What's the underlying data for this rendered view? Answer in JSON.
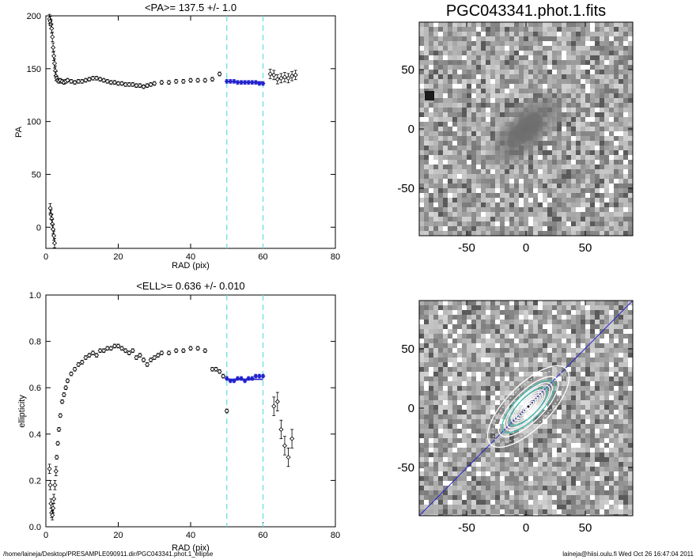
{
  "footer": {
    "path": "/home/laineja/Desktop/PRESAMPLE090911.dir/PGC043341.phot.1_ellipse",
    "stamp": "laineja@hiisi.oulu.fi  Wed Oct 26 16:47:04 2011"
  },
  "colors": {
    "fit": "#2222cc",
    "window": "#66dddd",
    "cyan_contour": "#40c0b0"
  },
  "chart_data": [
    {
      "id": "pa",
      "type": "scatter",
      "title": "<PA>= 137.5 +/-   1.0",
      "xlabel": "RAD (pix)",
      "ylabel": "PA",
      "xlim": [
        0,
        80
      ],
      "ylim": [
        -20,
        200
      ],
      "xticks": [
        0,
        20,
        40,
        60,
        80
      ],
      "yticks": [
        0,
        50,
        100,
        150,
        200
      ],
      "window": [
        50,
        60
      ],
      "fit": {
        "value": 137.5,
        "x_range": [
          50,
          60
        ]
      },
      "series": [
        {
          "x": [
            1.0,
            1.2,
            1.4,
            1.6,
            1.8,
            2.0,
            2.2,
            2.4,
            2.6,
            2.8,
            3.0,
            3.3,
            3.6,
            4.0,
            4.5,
            5.0,
            5.5,
            6,
            7,
            8,
            9,
            10,
            11,
            12,
            13,
            14,
            15,
            16,
            17,
            18,
            19,
            20,
            21,
            22,
            23,
            24,
            25,
            26,
            27,
            28,
            29,
            30,
            32,
            34,
            36,
            38,
            40,
            42,
            44,
            46
          ],
          "y": [
            197,
            195,
            192,
            188,
            180,
            170,
            162,
            155,
            148,
            143,
            141,
            139,
            138,
            139,
            138,
            137,
            138,
            139,
            138,
            137,
            138,
            138,
            139,
            140,
            141,
            141,
            140,
            139,
            138,
            137,
            137,
            136,
            136,
            135,
            135,
            135,
            134,
            134,
            133,
            134,
            135,
            136,
            137,
            137,
            138,
            138,
            139,
            139,
            139,
            140
          ]
        },
        {
          "x": [
            1.2,
            1.4,
            1.6,
            1.8,
            2.0,
            2.2,
            2.4
          ],
          "y": [
            18,
            12,
            8,
            3,
            -2,
            -8,
            -15
          ]
        },
        {
          "x": [
            48
          ],
          "y": [
            145
          ]
        },
        {
          "name": "fit",
          "x": [
            50,
            51,
            52,
            53,
            54,
            55,
            56,
            57,
            58,
            59,
            60
          ],
          "y": [
            138,
            138,
            138,
            137,
            137,
            137,
            137,
            137,
            137,
            136,
            136
          ]
        },
        {
          "x": [
            62,
            63,
            64,
            65,
            66,
            67,
            68,
            69
          ],
          "y": [
            145,
            144,
            140,
            141,
            142,
            141,
            143,
            144
          ]
        }
      ]
    },
    {
      "id": "ell",
      "type": "scatter",
      "title": "<ELL>= 0.636 +/-  0.010",
      "xlabel": "RAD (pix)",
      "ylabel": "ellipticity",
      "xlim": [
        0,
        80
      ],
      "ylim": [
        0.0,
        1.0
      ],
      "xticks": [
        0,
        20,
        40,
        60,
        80
      ],
      "yticks": [
        0.0,
        0.2,
        0.4,
        0.6,
        0.8,
        1.0
      ],
      "window": [
        50,
        60
      ],
      "fit": {
        "value": 0.636,
        "x_range": [
          50,
          60
        ]
      },
      "series": [
        {
          "x": [
            1.0,
            1.2,
            1.4,
            1.6,
            1.8,
            2.0,
            2.2,
            2.5,
            2.8,
            3.0,
            3.3,
            3.6,
            4.0,
            4.5,
            5.0,
            5.5,
            6,
            7,
            8,
            9,
            10,
            11,
            12,
            13,
            14,
            15,
            16,
            17,
            18,
            19,
            20,
            21,
            22,
            23,
            24,
            25,
            26,
            27,
            28,
            29,
            30,
            31,
            32,
            34,
            36,
            38,
            40,
            42,
            44
          ],
          "y": [
            0.25,
            0.18,
            0.1,
            0.06,
            0.05,
            0.08,
            0.12,
            0.18,
            0.24,
            0.3,
            0.36,
            0.42,
            0.48,
            0.54,
            0.57,
            0.6,
            0.63,
            0.66,
            0.68,
            0.7,
            0.71,
            0.73,
            0.74,
            0.75,
            0.74,
            0.76,
            0.76,
            0.77,
            0.77,
            0.78,
            0.78,
            0.77,
            0.76,
            0.75,
            0.76,
            0.73,
            0.74,
            0.72,
            0.7,
            0.72,
            0.73,
            0.74,
            0.75,
            0.75,
            0.76,
            0.76,
            0.77,
            0.77,
            0.76
          ]
        },
        {
          "x": [
            46,
            47,
            48,
            49
          ],
          "y": [
            0.68,
            0.68,
            0.67,
            0.65
          ]
        },
        {
          "x": [
            50
          ],
          "y": [
            0.5
          ]
        },
        {
          "name": "fit",
          "x": [
            50,
            51,
            52,
            53,
            54,
            55,
            56,
            57,
            58,
            59,
            60
          ],
          "y": [
            0.64,
            0.63,
            0.63,
            0.64,
            0.64,
            0.63,
            0.64,
            0.64,
            0.65,
            0.65,
            0.65
          ]
        },
        {
          "x": [
            63,
            64,
            65,
            66,
            67,
            68
          ],
          "y": [
            0.52,
            0.54,
            0.42,
            0.35,
            0.3,
            0.38
          ]
        }
      ]
    }
  ],
  "image_panels": [
    {
      "id": "image",
      "title": "PGC043341.phot.1.fits",
      "xticks": [
        "-50",
        "0",
        "50"
      ],
      "yticks": [
        "50",
        "0",
        "-50"
      ]
    },
    {
      "id": "model",
      "title": "",
      "xticks": [
        "-50",
        "0",
        "50"
      ],
      "yticks": [
        "50",
        "0",
        "-50"
      ]
    }
  ]
}
